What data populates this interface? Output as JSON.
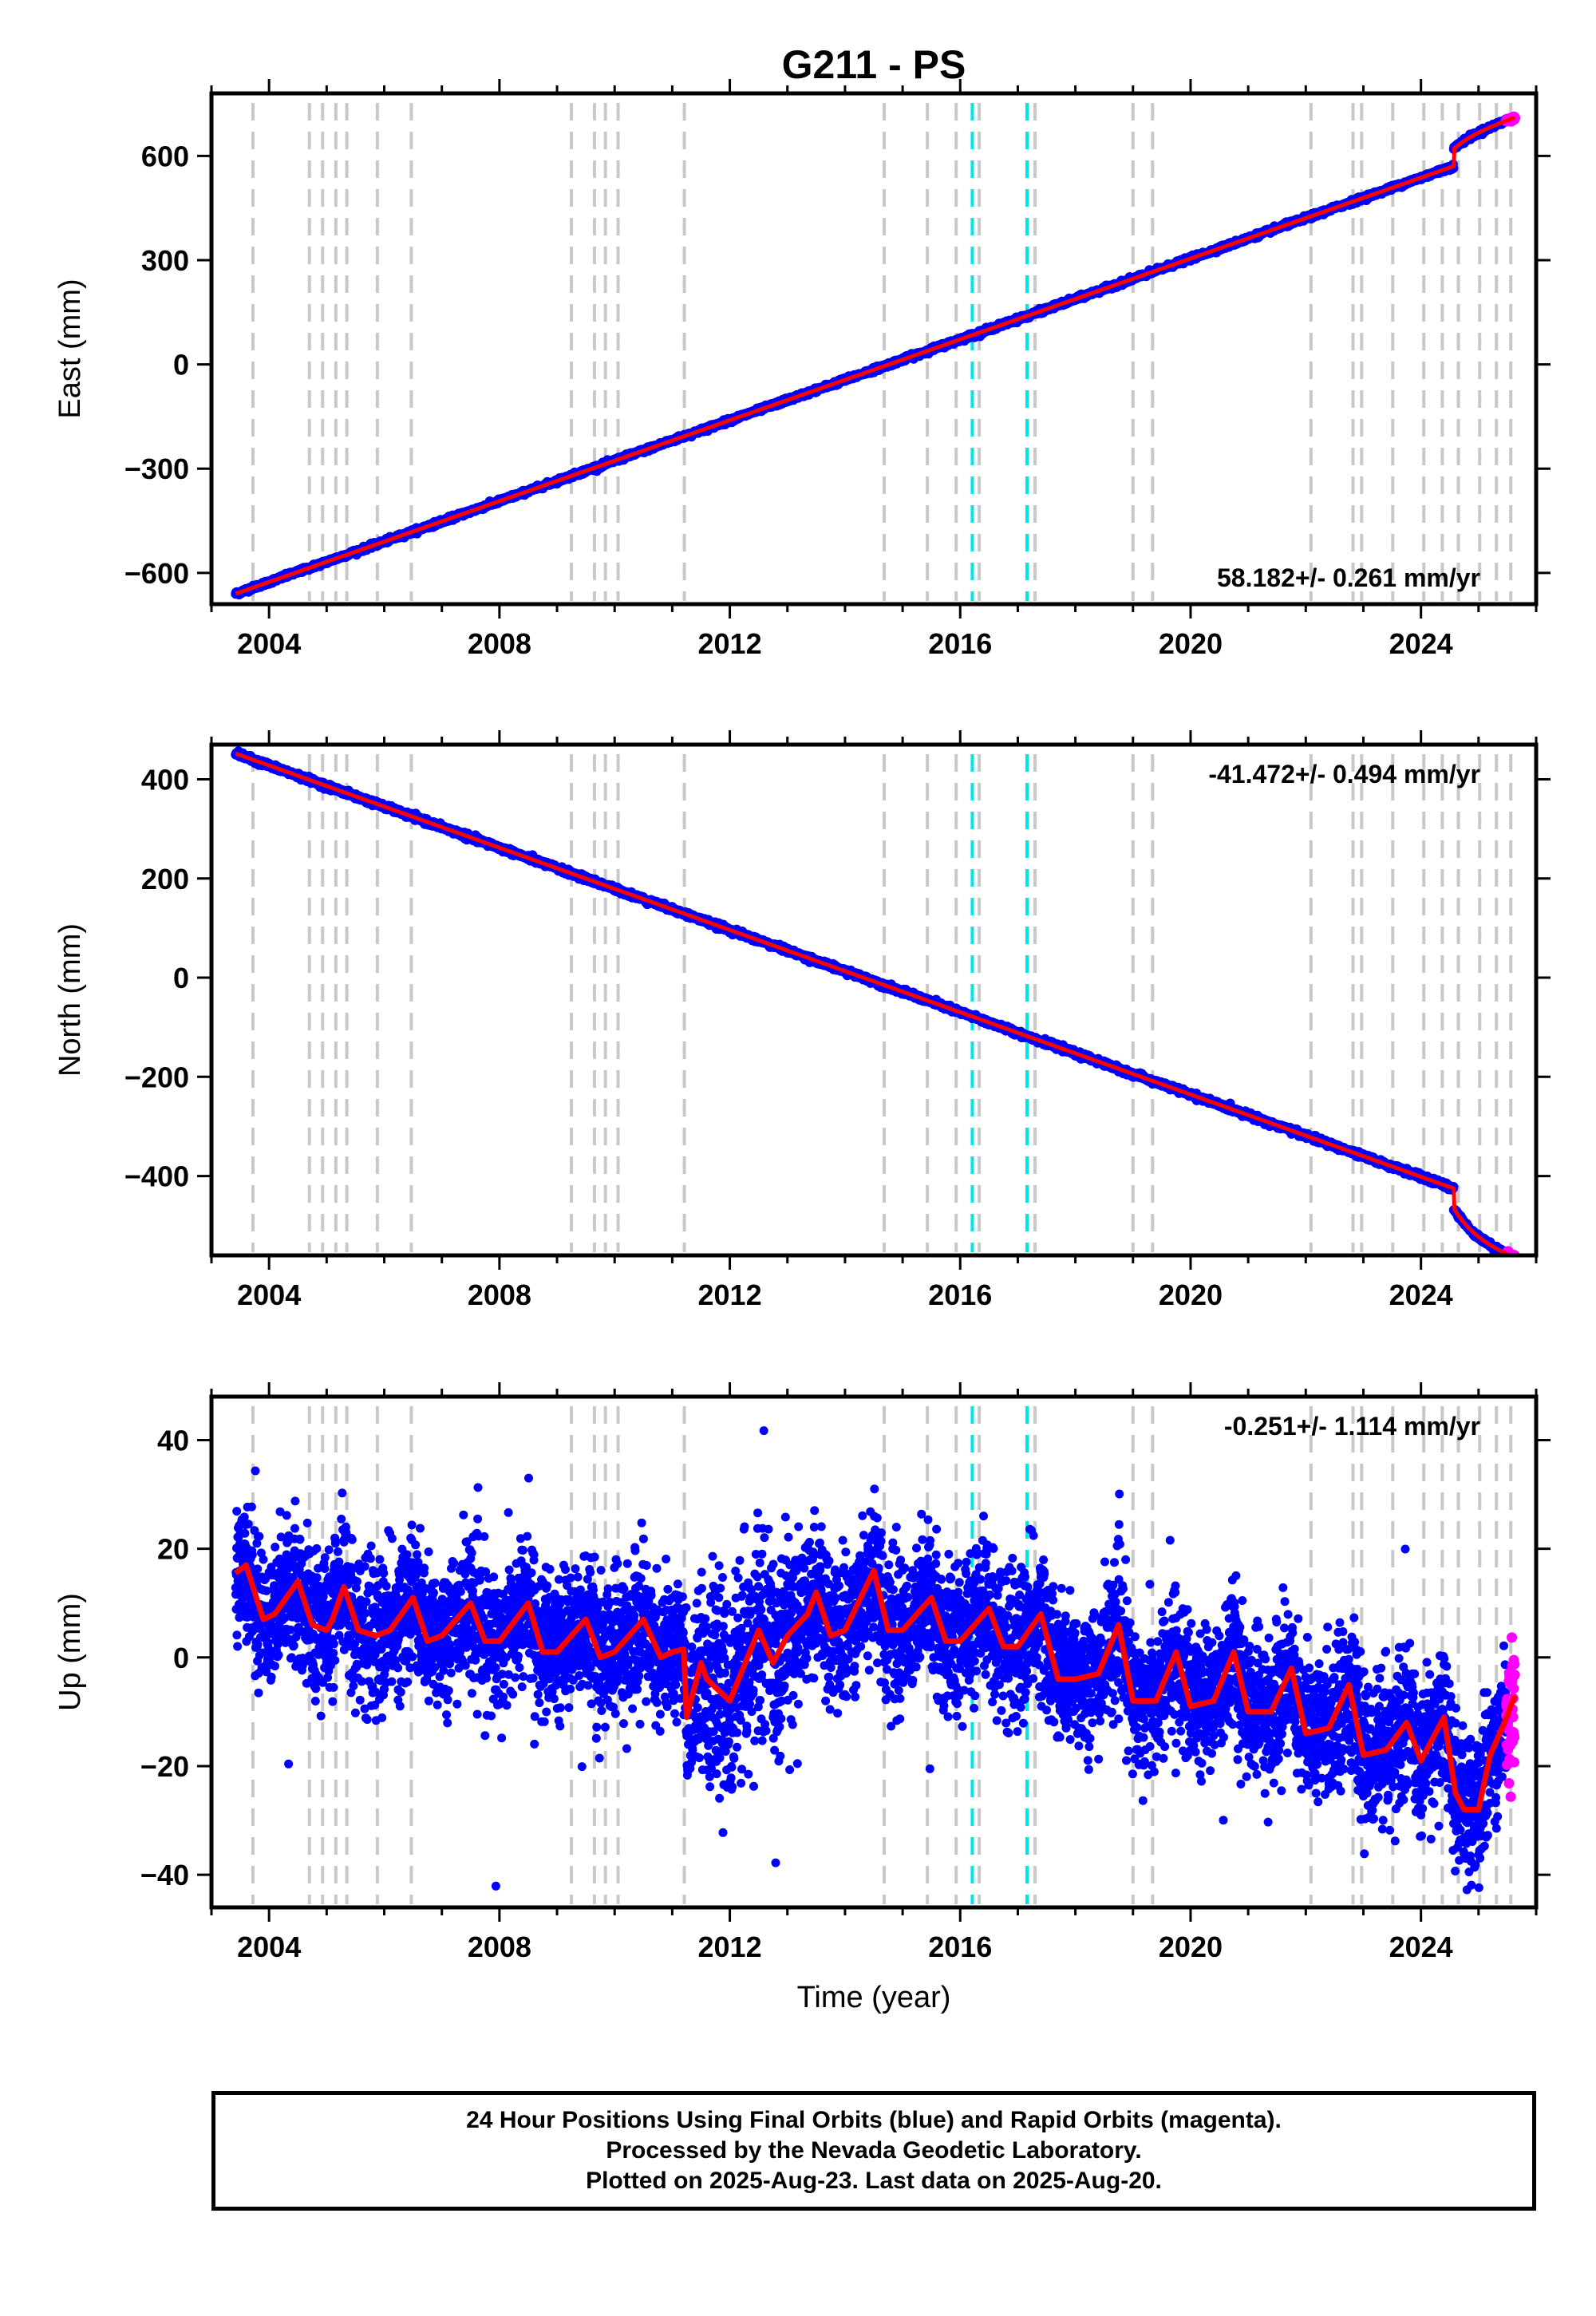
{
  "title": "G211 - PS",
  "xlabel": "Time (year)",
  "x_ticks": [
    2004,
    2008,
    2012,
    2016,
    2020,
    2024
  ],
  "x_range": [
    2003.0,
    2026.0
  ],
  "event_lines": {
    "gray": [
      2003.72,
      2004.7,
      2004.93,
      2005.16,
      2005.35,
      2005.88,
      2006.47,
      2009.25,
      2009.65,
      2009.84,
      2010.06,
      2011.21,
      2014.68,
      2015.43,
      2015.93,
      2016.33,
      2017.3,
      2019.0,
      2019.34,
      2022.09,
      2022.82,
      2022.97,
      2023.51,
      2024.05,
      2024.37,
      2024.65,
      2025.02,
      2025.31,
      2025.56
    ],
    "cyan": [
      2016.21,
      2017.16
    ],
    "gray_color": "#c8c8c8",
    "cyan_color": "#00e6e6"
  },
  "colors": {
    "final_points": "#0000ff",
    "rapid_points": "#ff00ff",
    "model_fit": "#ff0000"
  },
  "chart_data": [
    {
      "type": "scatter",
      "name": "east",
      "ylabel": "East (mm)",
      "ylim": [
        -690,
        780
      ],
      "y_ticks": [
        -600,
        -300,
        0,
        300,
        600
      ],
      "rate_label": "58.182+/- 0.261 mm/yr",
      "rate_position": "bottom-right",
      "trend": {
        "t0": 2003.42,
        "y0": -660,
        "slope": 58.182
      },
      "offsets": [
        {
          "t": 2024.57,
          "dy": 50,
          "post_seismic_amp": 30,
          "tau": 0.35
        }
      ],
      "noise_sd": 3.0,
      "t_start": 2003.42,
      "t_end": 2025.63,
      "rapid_from": 2025.48,
      "series": [
        {
          "name": "Final Orbits",
          "color": "#0000ff"
        },
        {
          "name": "Rapid Orbits",
          "color": "#ff00ff"
        },
        {
          "name": "Model",
          "color": "#ff0000"
        }
      ]
    },
    {
      "type": "scatter",
      "name": "north",
      "ylabel": "North (mm)",
      "ylim": [
        -560,
        470
      ],
      "y_ticks": [
        -400,
        -200,
        0,
        200,
        400
      ],
      "rate_label": "-41.472+/- 0.494 mm/yr",
      "rate_position": "top-right",
      "trend": {
        "t0": 2003.42,
        "y0": 452,
        "slope": -41.472
      },
      "offsets": [
        {
          "t": 2024.57,
          "dy": -40,
          "post_seismic_amp": -60,
          "tau": 0.4
        }
      ],
      "noise_sd": 2.5,
      "t_start": 2003.42,
      "t_end": 2025.63,
      "rapid_from": 2025.48,
      "series": [
        {
          "name": "Final Orbits",
          "color": "#0000ff"
        },
        {
          "name": "Rapid Orbits",
          "color": "#ff00ff"
        },
        {
          "name": "Model",
          "color": "#ff0000"
        }
      ]
    },
    {
      "type": "scatter",
      "name": "up",
      "ylabel": "Up (mm)",
      "ylim": [
        -46,
        48
      ],
      "y_ticks": [
        -40,
        -20,
        0,
        20,
        40
      ],
      "rate_label": "-0.251+/- 1.114 mm/yr",
      "rate_position": "top-right",
      "noise_sd": 6.5,
      "t_start": 2003.42,
      "t_end": 2025.63,
      "rapid_from": 2025.48,
      "model_x": [
        2003.42,
        2003.6,
        2003.9,
        2004.1,
        2004.5,
        2004.75,
        2005.0,
        2005.1,
        2005.3,
        2005.55,
        2005.85,
        2006.1,
        2006.5,
        2006.75,
        2007.0,
        2007.5,
        2007.75,
        2008.0,
        2008.5,
        2008.75,
        2009.0,
        2009.5,
        2009.75,
        2010.0,
        2010.5,
        2010.8,
        2011.0,
        2011.2,
        2011.25,
        2011.5,
        2011.6,
        2012.0,
        2012.5,
        2012.75,
        2013.0,
        2013.35,
        2013.5,
        2013.75,
        2014.0,
        2014.5,
        2014.75,
        2015.0,
        2015.5,
        2015.75,
        2016.0,
        2016.5,
        2016.75,
        2017.0,
        2017.4,
        2017.7,
        2018.0,
        2018.4,
        2018.75,
        2019.0,
        2019.4,
        2019.75,
        2020.0,
        2020.4,
        2020.75,
        2021.0,
        2021.4,
        2021.75,
        2022.0,
        2022.4,
        2022.75,
        2023.0,
        2023.4,
        2023.75,
        2024.0,
        2024.4,
        2024.6,
        2024.75,
        2025.0,
        2025.2,
        2025.45,
        2025.63
      ],
      "model_y": [
        15.5,
        17,
        7,
        8,
        14,
        6,
        5,
        7,
        13,
        5,
        4,
        5,
        11,
        3,
        4,
        10,
        3,
        3,
        10,
        1,
        1,
        7,
        0,
        1,
        7,
        0,
        1,
        1.5,
        -11,
        -1,
        -4,
        -8,
        5,
        -1,
        4,
        8,
        12,
        4,
        5,
        16,
        5,
        5,
        11,
        3,
        3,
        9,
        2,
        2,
        8,
        -4,
        -4,
        -3,
        6,
        -8,
        -8,
        1,
        -9,
        -8,
        1,
        -10,
        -10,
        -2,
        -14,
        -13,
        -5,
        -18,
        -17,
        -12,
        -19,
        -11,
        -25,
        -28,
        -28,
        -18,
        -12,
        -7
      ],
      "series": [
        {
          "name": "Final Orbits",
          "color": "#0000ff"
        },
        {
          "name": "Rapid Orbits",
          "color": "#ff00ff"
        },
        {
          "name": "Model",
          "color": "#ff0000"
        }
      ]
    }
  ],
  "caption": {
    "line1": "24 Hour Positions Using Final Orbits (blue) and Rapid Orbits (magenta).",
    "line2": "Processed by the Nevada Geodetic Laboratory.",
    "line3": "Plotted on 2025-Aug-23. Last data on 2025-Aug-20."
  }
}
